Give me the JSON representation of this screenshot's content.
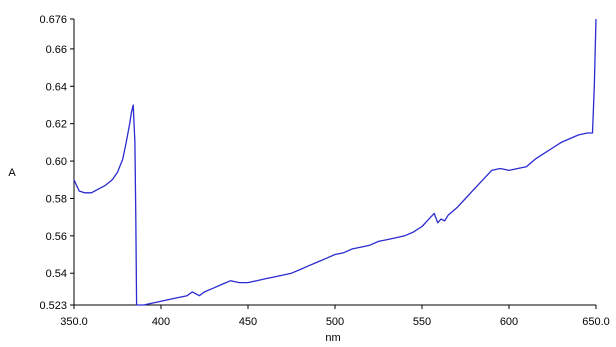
{
  "chart_data": {
    "type": "line",
    "title": "",
    "xlabel": "nm",
    "ylabel": "A",
    "xlim": [
      350,
      650
    ],
    "ylim": [
      0.523,
      0.676
    ],
    "x_ticks": [
      350,
      400,
      450,
      500,
      550,
      600,
      650
    ],
    "x_tick_labels": [
      "350.0",
      "400",
      "450",
      "500",
      "550",
      "600",
      "650.0"
    ],
    "y_ticks": [
      0.523,
      0.54,
      0.56,
      0.58,
      0.6,
      0.62,
      0.64,
      0.66,
      0.676
    ],
    "y_tick_labels": [
      "0.523",
      "0.54",
      "0.56",
      "0.58",
      "0.60",
      "0.62",
      "0.64",
      "0.66",
      "0.676"
    ],
    "grid": false,
    "colors": {
      "line": "#2b2bd0",
      "axis": "#000000"
    },
    "series": [
      {
        "x": [
          350,
          351,
          353,
          356,
          360,
          364,
          368,
          372,
          375,
          378,
          380,
          382,
          383,
          384,
          385,
          385.5,
          386,
          387,
          390,
          395,
          400,
          405,
          410,
          415,
          418,
          420,
          422,
          425,
          430,
          435,
          440,
          445,
          450,
          455,
          460,
          465,
          470,
          475,
          480,
          485,
          490,
          495,
          500,
          505,
          510,
          515,
          520,
          525,
          530,
          535,
          540,
          545,
          550,
          553,
          555,
          557,
          559,
          561,
          563,
          565,
          570,
          575,
          580,
          585,
          590,
          595,
          600,
          605,
          610,
          615,
          620,
          625,
          630,
          635,
          640,
          645,
          647,
          648,
          649,
          650
        ],
        "y": [
          0.59,
          0.588,
          0.584,
          0.583,
          0.583,
          0.585,
          0.587,
          0.59,
          0.594,
          0.601,
          0.61,
          0.62,
          0.626,
          0.63,
          0.61,
          0.57,
          0.523,
          0.523,
          0.523,
          0.524,
          0.525,
          0.526,
          0.527,
          0.528,
          0.53,
          0.529,
          0.528,
          0.53,
          0.532,
          0.534,
          0.536,
          0.535,
          0.535,
          0.536,
          0.537,
          0.538,
          0.539,
          0.54,
          0.542,
          0.544,
          0.546,
          0.548,
          0.55,
          0.551,
          0.553,
          0.554,
          0.555,
          0.557,
          0.558,
          0.559,
          0.56,
          0.562,
          0.565,
          0.568,
          0.57,
          0.572,
          0.567,
          0.569,
          0.568,
          0.571,
          0.575,
          0.58,
          0.585,
          0.59,
          0.595,
          0.596,
          0.595,
          0.596,
          0.597,
          0.601,
          0.604,
          0.607,
          0.61,
          0.612,
          0.614,
          0.615,
          0.615,
          0.615,
          0.64,
          0.676
        ]
      }
    ]
  }
}
